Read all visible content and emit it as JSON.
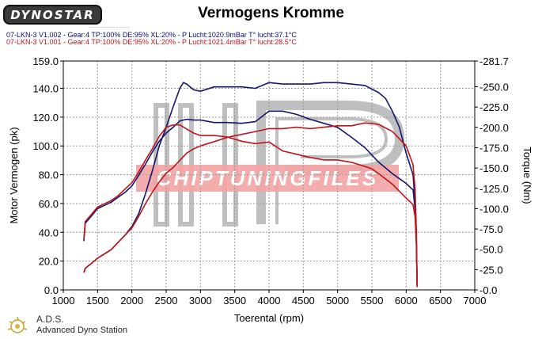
{
  "header": {
    "logo_text": "DYNOSTAR",
    "logo_sub": "...........................  ...... ..",
    "runs": [
      "07-LKN-3 V1.002 - Gear:4 TP:100% DE:95% XL:20%   - P Lucht:1020.9mBar T° lucht:37.1°C",
      "07-LKN-3 V1.001 - Gear:4 TP:100% DE:95% XL:20%   - P Lucht:1021.4mBar T° lucht:28.5°C"
    ]
  },
  "footer": {
    "title": "A.D.S.",
    "subtitle": "Advanced Dyno Station",
    "icon": "sun-flame-icon"
  },
  "watermark": {
    "banner_text": "CHIPTUNINGFILES",
    "letters": "HP"
  },
  "colors": {
    "run1": "#16166e",
    "run2": "#c0141b",
    "grid": "#9a9a9a",
    "banner": "#ea5a5a"
  },
  "chart_data": {
    "type": "line",
    "title": "Vermogens Kromme",
    "xlabel": "Toerental (rpm)",
    "ylabel": "Motor Vermogen (pk)",
    "y2label": "Torque (Nm)",
    "xlim": [
      1000,
      7000
    ],
    "ylim": [
      0,
      159
    ],
    "y2lim": [
      0,
      281.7
    ],
    "x_ticks": [
      "1000",
      "1500",
      "2000",
      "2500",
      "3000",
      "3500",
      "4000",
      "4500",
      "5000",
      "5500",
      "6000",
      "6500",
      "7000"
    ],
    "y_ticks": [
      "0.0",
      "20.0",
      "40.0",
      "60.0",
      "80.0",
      "100.0",
      "120.0",
      "140.0",
      "159.0"
    ],
    "y2_ticks": [
      "-0.0",
      "-25.0",
      "-50.0",
      "-75.0",
      "-100.0",
      "-125.0",
      "-150.0",
      "-175.0",
      "-200.0",
      "-225.0",
      "-250.0",
      "-281.7"
    ],
    "grid": true,
    "series": [
      {
        "name": "07-LKN-3 V1.002",
        "measure": "torque",
        "axis": "right",
        "color": "#16166e",
        "x": [
          1300,
          1320,
          1400,
          1500,
          1600,
          1700,
          1800,
          1900,
          2000,
          2100,
          2200,
          2300,
          2400,
          2500,
          2600,
          2700,
          2800,
          2900,
          3000,
          3200,
          3400,
          3600,
          3800,
          4000,
          4200,
          4400,
          4600,
          4800,
          5000,
          5200,
          5400,
          5600,
          5800,
          6000,
          6100,
          6130,
          6150,
          6160
        ],
        "y": [
          60,
          82,
          90,
          100,
          104,
          108,
          114,
          120,
          128,
          141,
          155,
          170,
          183,
          193,
          200,
          208,
          210,
          209,
          209,
          206,
          206,
          205,
          207,
          220,
          220,
          216,
          210,
          205,
          200,
          188,
          175,
          157,
          143,
          131,
          123,
          100,
          60,
          5
        ]
      },
      {
        "name": "07-LKN-3 V1.002",
        "measure": "power",
        "axis": "left",
        "color": "#16166e",
        "x": [
          1300,
          1320,
          1400,
          1500,
          1600,
          1700,
          1800,
          1900,
          2000,
          2100,
          2200,
          2300,
          2400,
          2500,
          2600,
          2700,
          2750,
          2800,
          2900,
          3000,
          3200,
          3400,
          3600,
          3800,
          4000,
          4200,
          4400,
          4600,
          4800,
          5000,
          5200,
          5400,
          5600,
          5700,
          5800,
          5900,
          6000,
          6100,
          6130,
          6150,
          6160
        ],
        "y": [
          12,
          15,
          18,
          22,
          25,
          28,
          33,
          38,
          44,
          53,
          67,
          83,
          100,
          113,
          127,
          140,
          144,
          143,
          139,
          138,
          141,
          141,
          141,
          140,
          144,
          143,
          143,
          143,
          144,
          144,
          143,
          142,
          137,
          133,
          124,
          113,
          95,
          80,
          60,
          30,
          2
        ]
      },
      {
        "name": "07-LKN-3 V1.001",
        "measure": "torque",
        "axis": "right",
        "color": "#c0141b",
        "x": [
          1300,
          1320,
          1400,
          1500,
          1600,
          1700,
          1800,
          1900,
          2000,
          2100,
          2200,
          2300,
          2400,
          2500,
          2600,
          2700,
          2800,
          2900,
          3000,
          3200,
          3400,
          3600,
          3800,
          4000,
          4200,
          4400,
          4600,
          4800,
          5000,
          5200,
          5400,
          5500,
          5600,
          5800,
          6000,
          6100,
          6130,
          6150,
          6160
        ],
        "y": [
          62,
          84,
          92,
          102,
          106,
          110,
          116,
          124,
          132,
          145,
          160,
          174,
          189,
          200,
          203,
          203,
          198,
          193,
          190,
          190,
          188,
          183,
          180,
          182,
          171,
          167,
          163,
          160,
          160,
          157,
          152,
          149,
          143,
          130,
          113,
          105,
          90,
          55,
          5
        ]
      },
      {
        "name": "07-LKN-3 V1.001",
        "measure": "power",
        "axis": "left",
        "color": "#c0141b",
        "x": [
          1300,
          1320,
          1400,
          1500,
          1600,
          1700,
          1800,
          1900,
          2000,
          2100,
          2200,
          2300,
          2400,
          2500,
          2600,
          2700,
          2800,
          2900,
          3000,
          3200,
          3400,
          3600,
          3800,
          4000,
          4200,
          4400,
          4600,
          4800,
          5000,
          5200,
          5400,
          5600,
          5800,
          6000,
          6100,
          6130,
          6150,
          6160
        ],
        "y": [
          12,
          15,
          18,
          22,
          25,
          28,
          33,
          38,
          43,
          51,
          60,
          68,
          75,
          81,
          85,
          90,
          95,
          98,
          100,
          103,
          106,
          108,
          110,
          112,
          112,
          113,
          112,
          113,
          114,
          114,
          116,
          115,
          110,
          100,
          87,
          70,
          40,
          2
        ]
      }
    ]
  }
}
